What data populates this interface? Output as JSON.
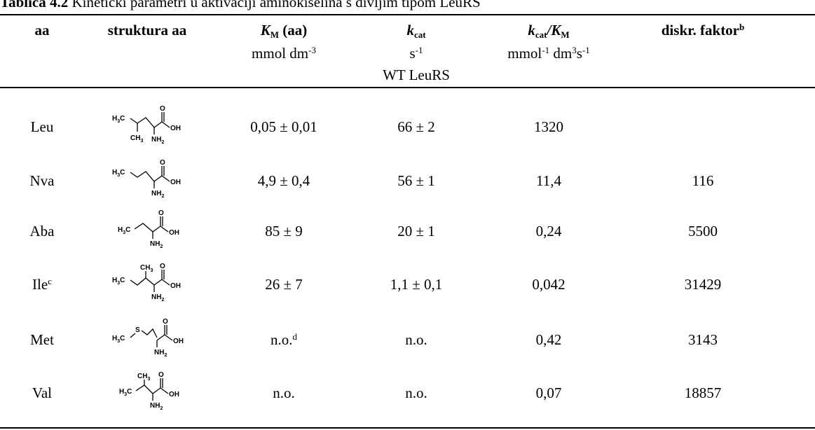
{
  "caption": {
    "label": "Tablica 4.2",
    "text": " Kinetički parametri u aktivaciji aminokiselina s divljim tipom LeuRS"
  },
  "headers": [
    {
      "main": "aa",
      "sub": "",
      "tail": "",
      "sup": ""
    },
    {
      "main": "struktura aa",
      "sub": "",
      "tail": "",
      "sup": ""
    },
    {
      "main": "K",
      "sub": "M",
      "tail": " (aa)",
      "sup": ""
    },
    {
      "main": "k",
      "sub": "cat",
      "tail": "",
      "sup": ""
    },
    {
      "main": "k",
      "sub": "cat",
      "tail": "/K",
      "sub2": "M",
      "sup": ""
    },
    {
      "main": "diskr. faktor",
      "sub": "",
      "tail": "",
      "sup": "b"
    }
  ],
  "units": {
    "km": {
      "a": "mmol dm",
      "a_sup": "-3"
    },
    "kcat": {
      "a": "s",
      "a_sup": "-1"
    },
    "ratio": {
      "a": "mmol",
      "a_sup": "-1",
      "b": " dm",
      "b_sup": "3",
      "c": "s",
      "c_sup": "-1"
    },
    "enzyme": "WT LeuRS"
  },
  "rows": [
    {
      "aa": "Leu",
      "aa_sup": "",
      "km": "0,05 ± 0,01",
      "km_sup": "",
      "kcat": "66 ± 2",
      "ratio": "1320",
      "factor": "",
      "structure": "leucine"
    },
    {
      "aa": "Nva",
      "aa_sup": "",
      "km": "4,9 ± 0,4",
      "km_sup": "",
      "kcat": "56 ± 1",
      "ratio": "11,4",
      "factor": "116",
      "structure": "norvaline"
    },
    {
      "aa": "Aba",
      "aa_sup": "",
      "km": "85 ± 9",
      "km_sup": "",
      "kcat": "20 ± 1",
      "ratio": "0,24",
      "factor": "5500",
      "structure": "aminobutyrate"
    },
    {
      "aa": "Ile",
      "aa_sup": "c",
      "km": "26 ± 7",
      "km_sup": "",
      "kcat": "1,1 ± 0,1",
      "ratio": "0,042",
      "factor": "31429",
      "structure": "isoleucine"
    },
    {
      "aa": "Met",
      "aa_sup": "",
      "km": "n.o.",
      "km_sup": "d",
      "kcat": "n.o.",
      "ratio": "0,42",
      "factor": "3143",
      "structure": "methionine"
    },
    {
      "aa": "Val",
      "aa_sup": "",
      "km": "n.o.",
      "km_sup": "",
      "kcat": "n.o.",
      "ratio": "0,07",
      "factor": "18857",
      "structure": "valine"
    }
  ],
  "chem": {
    "h3c": "H",
    "h3c_sub": "3",
    "h3c_tail": "C",
    "ch3": "CH",
    "ch3_sub": "3",
    "nh2": "NH",
    "nh2_sub": "2",
    "oh": "OH",
    "o": "O",
    "s": "S"
  }
}
